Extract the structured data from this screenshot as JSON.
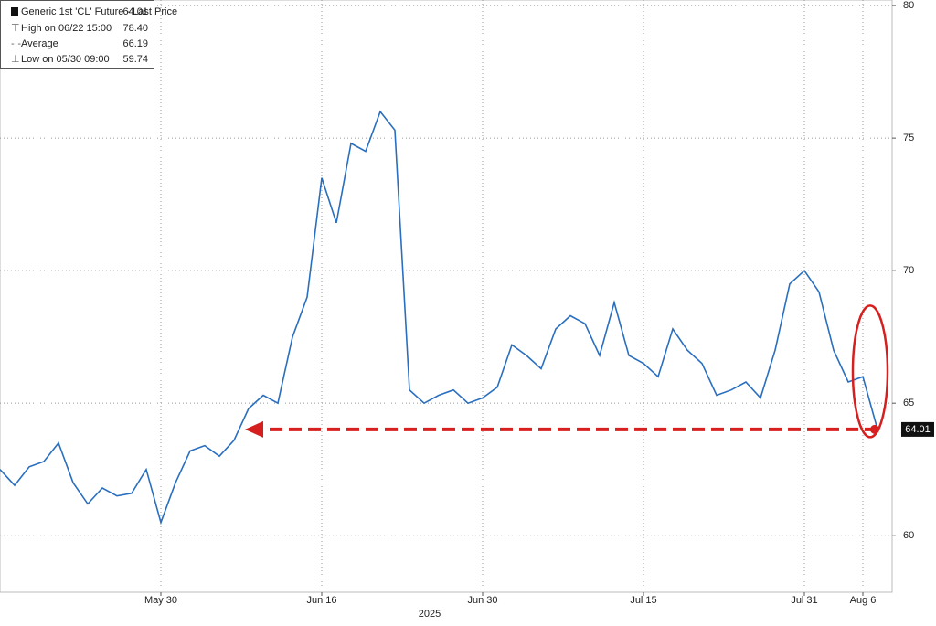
{
  "chart_data": {
    "type": "line",
    "x_label": "2025",
    "categories": [
      null,
      null,
      null,
      null,
      null,
      null,
      null,
      null,
      null,
      null,
      null,
      "May 30",
      null,
      null,
      null,
      null,
      null,
      null,
      null,
      null,
      null,
      null,
      "Jun 16",
      null,
      null,
      null,
      null,
      null,
      null,
      null,
      null,
      null,
      null,
      "Jun 30",
      null,
      null,
      null,
      null,
      null,
      null,
      null,
      null,
      null,
      null,
      "Jul 15",
      null,
      null,
      null,
      null,
      null,
      null,
      null,
      null,
      null,
      null,
      "Jul 31",
      null,
      null,
      null,
      "Aug 6",
      null
    ],
    "series": [
      {
        "name": "Generic 1st 'CL' Future - Last Price",
        "color": "#2a6fbf",
        "values": [
          62.5,
          61.9,
          62.6,
          62.8,
          63.5,
          62.0,
          61.2,
          61.8,
          61.5,
          61.6,
          62.5,
          60.5,
          62.0,
          63.2,
          63.4,
          63.0,
          63.6,
          64.8,
          65.3,
          65.0,
          67.5,
          69.0,
          73.5,
          71.8,
          74.8,
          74.5,
          76.0,
          75.3,
          65.5,
          65.0,
          65.3,
          65.5,
          65.0,
          65.2,
          65.6,
          67.2,
          66.8,
          66.3,
          67.8,
          68.3,
          68.0,
          66.8,
          68.8,
          66.8,
          66.5,
          66.0,
          67.8,
          67.0,
          66.5,
          65.3,
          65.5,
          65.8,
          65.2,
          67.0,
          69.5,
          70.0,
          69.2,
          67.0,
          65.8,
          66.0,
          64.01
        ]
      }
    ],
    "legend_stats": [
      {
        "label": "High on 06/22 15:00",
        "value": 78.4,
        "value_label": "78.40"
      },
      {
        "label": "Average",
        "value": 66.19
      },
      {
        "label": "Low on 05/30 09:00",
        "value": 59.74
      }
    ],
    "ylim": [
      57.87,
      80.21
    ],
    "yticks": [
      60,
      65,
      70,
      75,
      80
    ],
    "grid": true,
    "annotation_color": "#d62020"
  }
}
